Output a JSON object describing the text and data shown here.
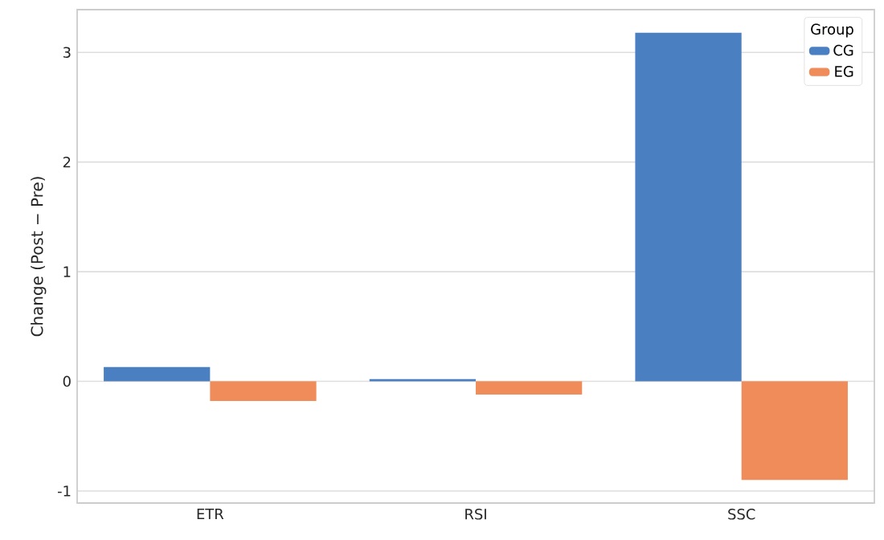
{
  "chart_data": {
    "type": "bar",
    "ylabel": "Change (Post − Pre)",
    "legend_title": "Group",
    "legend": "top right",
    "grid": "y",
    "categories": [
      "ETR",
      "RSI",
      "SSC"
    ],
    "series": [
      {
        "name": "CG",
        "color": "#4a7fc1",
        "values": [
          0.13,
          0.02,
          3.18
        ]
      },
      {
        "name": "EG",
        "color": "#f08c5a",
        "values": [
          -0.18,
          -0.12,
          -0.9
        ]
      }
    ],
    "ylim": [
      -1.11,
      3.39
    ],
    "yticks": [
      -1,
      0,
      1,
      2,
      3
    ]
  }
}
